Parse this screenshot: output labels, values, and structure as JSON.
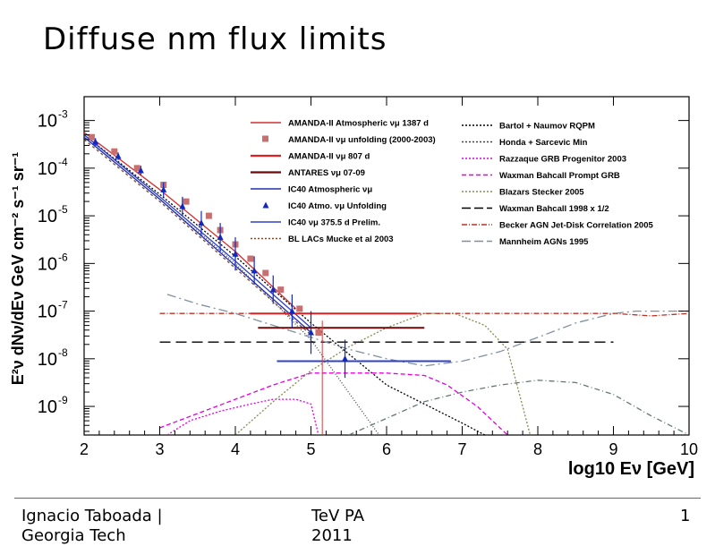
{
  "slide": {
    "title": "Diffuse nm flux limits",
    "footer_author": "Ignacio Taboada |\nGeorgia Tech",
    "footer_conference": "TeV PA\n2011",
    "page_number": "1"
  },
  "chart_data": {
    "type": "line",
    "title": "",
    "xlabel": "log10 Eν [GeV]",
    "ylabel": "E²ν dNν/dEν GeV cm⁻² s⁻¹ sr⁻¹",
    "xlim": [
      2,
      10
    ],
    "ylim": [
      -9.6,
      -2.5
    ],
    "y_log": true,
    "grid": false,
    "legend_position": "top-right (two columns)",
    "x_ticks": [
      "2",
      "3",
      "4",
      "5",
      "6",
      "7",
      "8",
      "9",
      "10"
    ],
    "y_ticks": [
      {
        "base": "10",
        "exp": "-3",
        "value": -3
      },
      {
        "base": "10",
        "exp": "-4",
        "value": -4
      },
      {
        "base": "10",
        "exp": "-5",
        "value": -5
      },
      {
        "base": "10",
        "exp": "-6",
        "value": -6
      },
      {
        "base": "10",
        "exp": "-7",
        "value": -7
      },
      {
        "base": "10",
        "exp": "-8",
        "value": -8
      },
      {
        "base": "10",
        "exp": "-9",
        "value": -9
      }
    ],
    "legend_left": [
      {
        "label": "AMANDA-II Atmospheric νμ 1387 d",
        "color": "#d23030",
        "style": "solid"
      },
      {
        "label": "AMANDA-II νμ unfolding (2000-2003)",
        "color": "#c87070",
        "style": "square"
      },
      {
        "label": "AMANDA-II νμ 807 d",
        "color": "#e02020",
        "style": "thick"
      },
      {
        "label": "ANTARES νμ 07-09",
        "color": "#6a0a0a",
        "style": "thick"
      },
      {
        "label": "IC40 Atmospheric νμ",
        "color": "#2030b0",
        "style": "solid"
      },
      {
        "label": "IC40 Atmo. νμ Unfolding",
        "color": "#1028c0",
        "style": "triangle"
      },
      {
        "label": "IC40 νμ 375.5 d Prelim.",
        "color": "#3040c8",
        "style": "solid"
      },
      {
        "label": "BL LACs Mucke et al 2003",
        "color": "#7a4a2a",
        "style": "dotted"
      }
    ],
    "legend_right": [
      {
        "label": "Bartol + Naumov RQPM",
        "color": "#000000",
        "style": "dotted"
      },
      {
        "label": "Honda + Sarcevic Min",
        "color": "#444444",
        "style": "dotted"
      },
      {
        "label": "Razzaque GRB Progenitor 2003",
        "color": "#e000e0",
        "style": "dotted"
      },
      {
        "label": "Waxman Bahcall Prompt GRB",
        "color": "#e000e0",
        "style": "dashed"
      },
      {
        "label": "Blazars Stecker 2005",
        "color": "#888855",
        "style": "dotted"
      },
      {
        "label": "Waxman Bahcall 1998 x 1/2",
        "color": "#000000",
        "style": "longdash"
      },
      {
        "label": "Becker AGN Jet-Disk Correlation 2005",
        "color": "#c03020",
        "style": "dashdot"
      },
      {
        "label": "Mannheim AGNs 1995",
        "color": "#8090a0",
        "style": "longdash"
      }
    ],
    "series": [
      {
        "name": "Bartol + Naumov RQPM",
        "color": "#000000",
        "dash": "2,2",
        "x": [
          2.0,
          3.0,
          4.0,
          5.0,
          6.0,
          7.0,
          7.3
        ],
        "y": [
          -3.3,
          -4.55,
          -5.85,
          -7.25,
          -8.55,
          -9.35,
          -9.6
        ]
      },
      {
        "name": "Honda + Sarcevic Min",
        "color": "#444444",
        "dash": "1,2",
        "x": [
          2.0,
          3.0,
          4.0,
          5.0,
          5.9
        ],
        "y": [
          -3.35,
          -4.65,
          -6.0,
          -7.6,
          -9.6
        ]
      },
      {
        "name": "AMANDA-II Atmospheric νμ 1387 d",
        "color": "#d23030",
        "dash": "",
        "x": [
          2.0,
          3.0,
          4.0,
          4.8
        ],
        "y": [
          -3.25,
          -4.45,
          -5.75,
          -6.95
        ]
      },
      {
        "name": "IC40 Atmospheric νμ",
        "color": "#2030b0",
        "dash": "",
        "x": [
          2.0,
          3.0,
          4.0,
          5.0
        ],
        "y": [
          -3.35,
          -4.65,
          -6.05,
          -7.45
        ]
      },
      {
        "name": "IC40 νμ 375.5 d Prelim.",
        "color": "#3040c8",
        "dash": "",
        "x": [
          2.0,
          3.0,
          4.0,
          5.0
        ],
        "y": [
          -3.3,
          -4.6,
          -5.95,
          -7.35
        ]
      },
      {
        "name": "BL LACs Mucke et al 2003",
        "color": "#7a4a2a",
        "dash": "3,3",
        "x": [
          2.0,
          3.0,
          4.0,
          5.0
        ],
        "y": [
          -3.4,
          -4.7,
          -6.1,
          -7.5
        ]
      },
      {
        "name": "Razzaque GRB Progenitor 2003",
        "color": "#e000e0",
        "dash": "2,2",
        "x": [
          3.1,
          3.4,
          3.8,
          4.2,
          4.5,
          4.8,
          5.0,
          5.1
        ],
        "y": [
          -9.6,
          -9.3,
          -9.1,
          -8.95,
          -8.85,
          -8.85,
          -8.95,
          -9.6
        ]
      },
      {
        "name": "Waxman Bahcall Prompt GRB",
        "color": "#e000e0",
        "dash": "5,3",
        "x": [
          3.0,
          3.5,
          4.0,
          4.5,
          5.0,
          6.0,
          6.5,
          6.8,
          7.2,
          7.6
        ],
        "y": [
          -9.45,
          -9.15,
          -8.85,
          -8.55,
          -8.3,
          -8.3,
          -8.35,
          -8.55,
          -9.0,
          -9.6
        ]
      },
      {
        "name": "Blazars Stecker 2005",
        "color": "#888855",
        "dash": "2,2",
        "x": [
          4.0,
          4.5,
          5.0,
          5.5,
          6.0,
          6.5,
          6.9,
          7.3,
          7.6,
          7.9
        ],
        "y": [
          -9.6,
          -8.9,
          -8.25,
          -7.75,
          -7.35,
          -7.05,
          -7.05,
          -7.3,
          -7.8,
          -9.6
        ]
      },
      {
        "name": "Waxman Bahcall 1998 x 1/2",
        "color": "#000000",
        "dash": "12,6",
        "x": [
          3.0,
          9.0
        ],
        "y": [
          -7.65,
          -7.65
        ]
      },
      {
        "name": "Becker AGN Jet-Disk Correlation 2005",
        "color": "#c03020",
        "dash": "6,2,1,2",
        "x": [
          3.0,
          4.0,
          5.0,
          6.0,
          7.0,
          8.0,
          9.0,
          9.5,
          10.0
        ],
        "y": [
          -7.05,
          -7.05,
          -7.05,
          -7.05,
          -7.05,
          -7.05,
          -7.05,
          -7.1,
          -7.05
        ]
      },
      {
        "name": "Mannheim AGNs 1995",
        "color": "#8090a0",
        "dash": "10,4,2,4",
        "x": [
          3.1,
          3.5,
          4.0,
          4.5,
          5.0,
          5.5,
          6.0,
          6.5,
          7.0,
          7.5,
          8.0,
          8.5,
          9.0,
          9.3,
          9.6,
          10.0
        ],
        "y": [
          -6.65,
          -6.85,
          -7.05,
          -7.3,
          -7.55,
          -7.8,
          -8.0,
          -8.15,
          -8.05,
          -7.85,
          -7.55,
          -7.25,
          -7.05,
          -7.0,
          -7.0,
          -7.0
        ]
      },
      {
        "name": "Mannheim AGNs 1995 (high energy)",
        "color": "#667777",
        "dash": "6,3,1,3",
        "x": [
          5.5,
          6.0,
          6.5,
          7.0,
          7.5,
          8.0,
          8.5,
          9.0,
          9.5,
          10.0
        ],
        "y": [
          -9.6,
          -9.25,
          -8.9,
          -8.7,
          -8.55,
          -8.45,
          -8.5,
          -8.75,
          -9.2,
          -9.6
        ]
      }
    ],
    "limits": [
      {
        "name": "AMANDA-II νμ 807 d",
        "color": "#e02020",
        "x": [
          4.2,
          6.4
        ],
        "y": -7.05
      },
      {
        "name": "ANTARES νμ 07-09",
        "color": "#6a0a0a",
        "x": [
          4.3,
          6.5
        ],
        "y": -7.35
      },
      {
        "name": "IC40 νμ 375.5 d Prelim.",
        "color": "#3040c8",
        "x": [
          4.55,
          6.85
        ],
        "y": -8.05
      }
    ],
    "points_amanda_unfolding": {
      "color": "#c87070",
      "x": [
        2.1,
        2.4,
        2.7,
        3.05,
        3.35,
        3.65,
        3.8,
        4.0,
        4.2,
        4.4,
        4.6,
        4.85,
        5.1
      ],
      "y": [
        -3.35,
        -3.65,
        -4.0,
        -4.35,
        -4.7,
        -5.0,
        -5.3,
        -5.6,
        -5.9,
        -6.2,
        -6.55,
        -6.95,
        -7.45
      ]
    },
    "points_ic40_unfolding": {
      "color": "#1028c0",
      "x": [
        2.15,
        2.45,
        2.75,
        3.05,
        3.3,
        3.55,
        3.8,
        4.0,
        4.25,
        4.5,
        4.75,
        5.0,
        5.45
      ],
      "y": [
        -3.45,
        -3.75,
        -4.05,
        -4.45,
        -4.8,
        -5.15,
        -5.45,
        -5.8,
        -6.15,
        -6.55,
        -7.0,
        -7.45,
        -8.0
      ],
      "yerr": [
        0.08,
        0.08,
        0.1,
        0.15,
        0.2,
        0.25,
        0.3,
        0.35,
        0.3,
        0.3,
        0.35,
        0.45,
        0.4
      ]
    }
  }
}
